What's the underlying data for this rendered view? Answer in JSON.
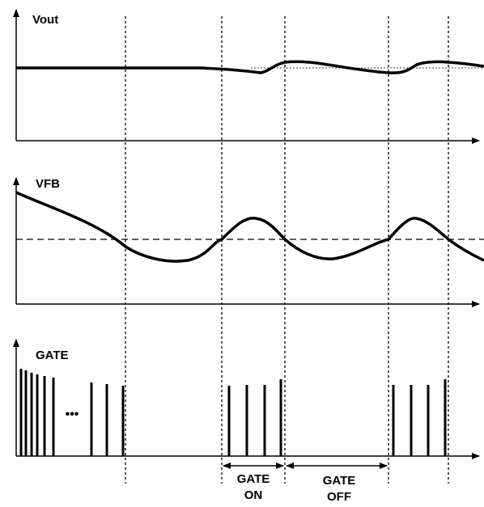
{
  "panels": {
    "vout": {
      "label": "Vout"
    },
    "vfb": {
      "label": "VFB"
    },
    "gate": {
      "label": "GATE",
      "ellipsis": "•••"
    }
  },
  "annotations": {
    "gate_on": {
      "line1": "GATE",
      "line2": "ON"
    },
    "gate_off": {
      "line1": "GATE",
      "line2": "OFF"
    }
  },
  "colors": {
    "ink": "#000000",
    "background": "#ffffff"
  }
}
